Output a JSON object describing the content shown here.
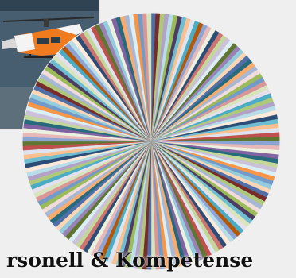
{
  "caption": "rsonell & Kompetense",
  "photo": {
    "icon": "helicopter-icon",
    "colors": {
      "sky": "#465e70",
      "body": "#f07a1e",
      "white": "#f4f4f4"
    }
  },
  "chart_data": {
    "type": "pie",
    "title": "",
    "slice_count": 180,
    "values": [
      1,
      1,
      1,
      1,
      1,
      1,
      1,
      1,
      1,
      1,
      1,
      1,
      1,
      1,
      1,
      1,
      1,
      1,
      1,
      1,
      1,
      1,
      1,
      1,
      1,
      1,
      1,
      1,
      1,
      1,
      1,
      1,
      1,
      1,
      1,
      1,
      1,
      1,
      1,
      1,
      1,
      1,
      1,
      1,
      1,
      1,
      1,
      1,
      1,
      1,
      1,
      1,
      1,
      1,
      1,
      1,
      1,
      1,
      1,
      1,
      1,
      1,
      1,
      1,
      1,
      1,
      1,
      1,
      1,
      1,
      1,
      1,
      1,
      1,
      1,
      1,
      1,
      1,
      1,
      1,
      1,
      1,
      1,
      1,
      1,
      1,
      1,
      1,
      1,
      1,
      1,
      1,
      1,
      1,
      1,
      1,
      1,
      1,
      1,
      1,
      1,
      1,
      1,
      1,
      1,
      1,
      1,
      1,
      1,
      1,
      1,
      1,
      1,
      1,
      1,
      1,
      1,
      1,
      1,
      1,
      1,
      1,
      1,
      1,
      1,
      1,
      1,
      1,
      1,
      1,
      1,
      1,
      1,
      1,
      1,
      1,
      1,
      1,
      1,
      1,
      1,
      1,
      1,
      1,
      1,
      1,
      1,
      1,
      1,
      1,
      1,
      1,
      1,
      1,
      1,
      1,
      1,
      1,
      1,
      1,
      1,
      1,
      1,
      1,
      1,
      1,
      1,
      1,
      1,
      1,
      1,
      1,
      1,
      1,
      1,
      1,
      1,
      1,
      1,
      1
    ],
    "legend": "none",
    "palette": [
      "#4f6fa8",
      "#c0504d",
      "#9bbb59",
      "#8064a2",
      "#4bacc6",
      "#f79646",
      "#2c4d75",
      "#772c2a",
      "#5f7530",
      "#4d3b62",
      "#276a7c",
      "#b65708",
      "#729aca",
      "#cd7371",
      "#afc97a",
      "#9983b5",
      "#6fbdd1",
      "#f9ab6b",
      "#8aa4d4",
      "#d99694",
      "#c4d79b",
      "#b3a2c7",
      "#93cddd",
      "#fac090",
      "#a7b8d6",
      "#e6b9b8",
      "#d7e4bd",
      "#ccc1da",
      "#b7dee8",
      "#fcd5b5",
      "#dde4ef",
      "#f2dcdb",
      "#ebf1de",
      "#e5e0ec",
      "#dbeef4",
      "#fdeada"
    ]
  }
}
